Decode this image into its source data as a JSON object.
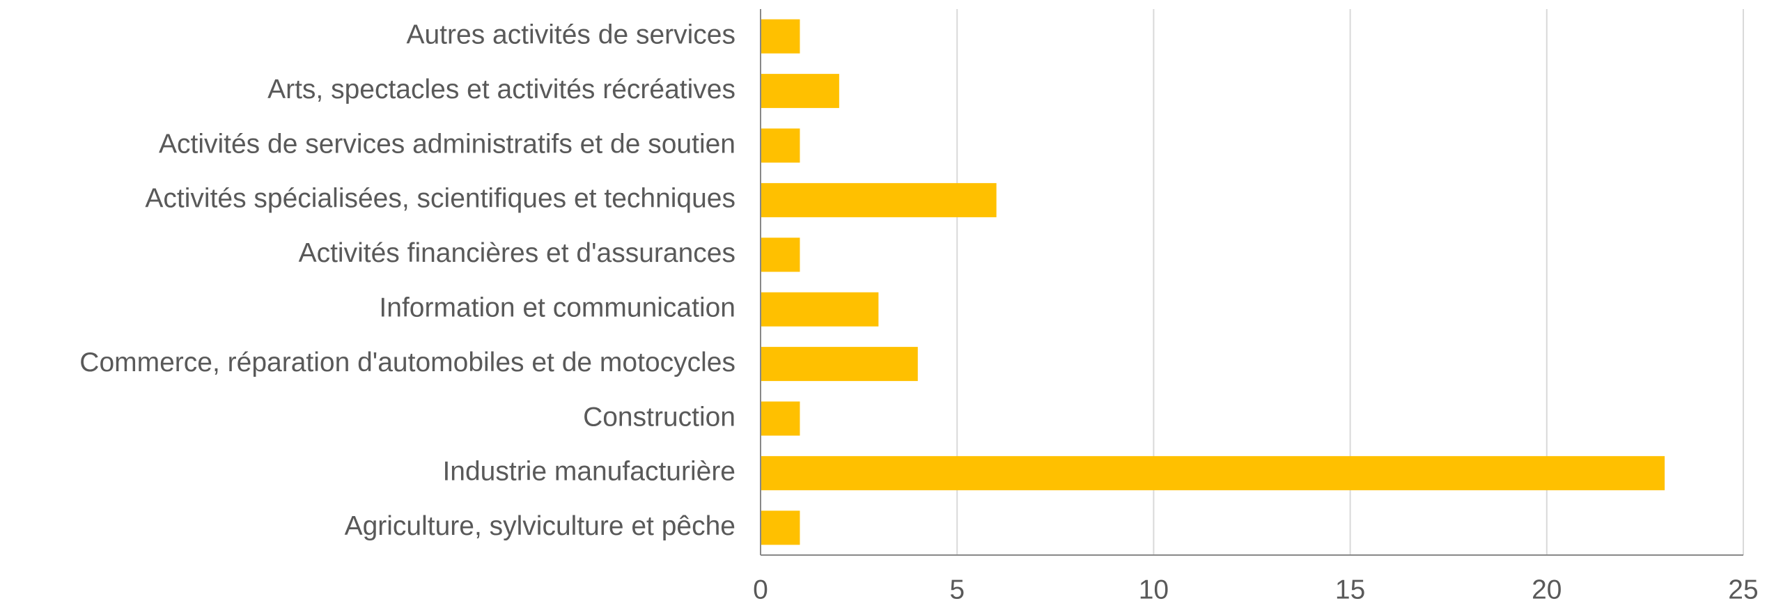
{
  "chart_data": {
    "type": "hbar",
    "categories": [
      "Autres activités de services",
      "Arts, spectacles et activités récréatives",
      "Activités de services administratifs et de soutien",
      "Activités spécialisées, scientifiques et techniques",
      "Activités financières et d'assurances",
      "Information et communication",
      "Commerce, réparation d'automobiles et de motocycles",
      "Construction",
      "Industrie manufacturière",
      "Agriculture, sylviculture et pêche"
    ],
    "values": [
      1,
      2,
      1,
      6,
      1,
      3,
      4,
      1,
      23,
      1
    ],
    "color": "#ffc000",
    "xlim": [
      0,
      25
    ],
    "xticks": [
      0,
      5,
      10,
      15,
      20,
      25
    ],
    "grid": true
  }
}
